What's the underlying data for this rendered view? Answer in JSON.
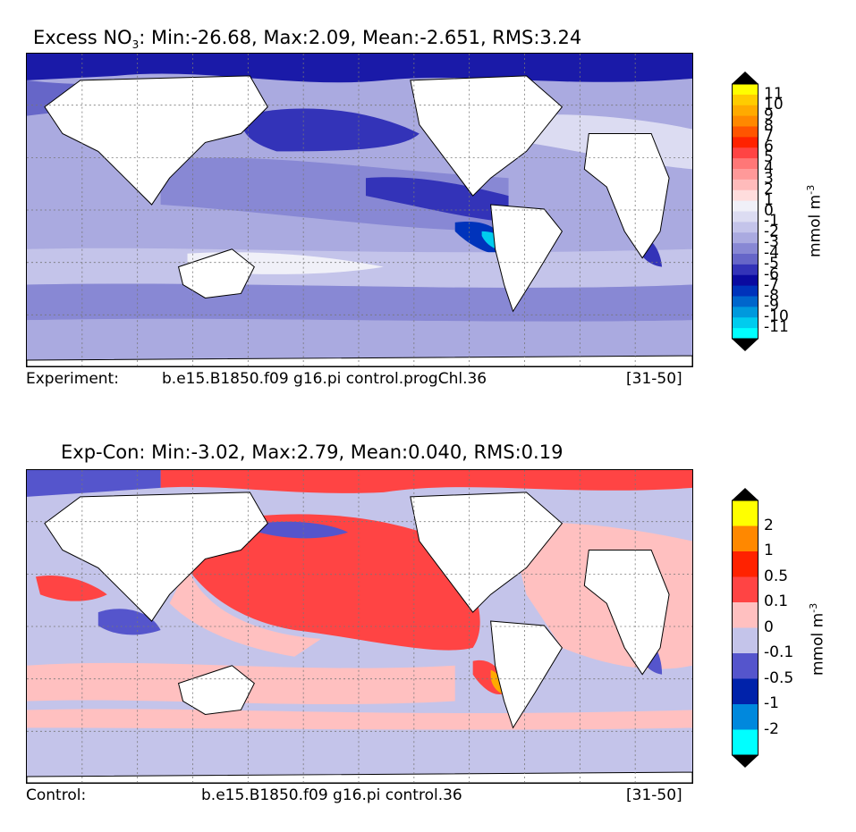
{
  "panel_top": {
    "title_prefix": "Excess NO",
    "title_sub": "3",
    "title_stats": ": Min:-26.68, Max:2.09, Mean:-2.651, RMS:3.24",
    "footer_left": "Experiment:",
    "footer_mid": "b.e15.B1850.f09 g16.pi control.progChl.36",
    "footer_right": "[31-50]",
    "colorbar": {
      "unit": "mmol m",
      "unit_sup": "-3",
      "ticks": [
        "11",
        "10",
        "9",
        "8",
        "7",
        "6",
        "5",
        "4",
        "3",
        "2",
        "1",
        "0",
        "-1",
        "-2",
        "-3",
        "-4",
        "-5",
        "-6",
        "-7",
        "-8",
        "-9",
        "-10",
        "-11"
      ],
      "colors": [
        "#ffff00",
        "#ffcc00",
        "#ffaa00",
        "#ff8800",
        "#ff5500",
        "#ff2200",
        "#ff4444",
        "#ff7777",
        "#ff9999",
        "#ffbbbb",
        "#ffdddd",
        "#f0f0f8",
        "#dcdcf2",
        "#c4c4ea",
        "#aaaae0",
        "#8888d4",
        "#6666c8",
        "#3333b8",
        "#0a0aa0",
        "#0033bb",
        "#0066cc",
        "#0099dd",
        "#00ccee",
        "#00ffff"
      ]
    },
    "regions": {
      "ocean_base": "#aaaae0",
      "deep_blue": "#3333b8",
      "mid_blue": "#8888d4",
      "light": "#dcdcf2",
      "cyan": "#00ccee",
      "land": "#ffffff"
    }
  },
  "panel_bottom": {
    "title": "Exp-Con: Min:-3.02, Max:2.79, Mean:0.040, RMS:0.19",
    "footer_left": "Control:",
    "footer_mid": "b.e15.B1850.f09 g16.pi control.36",
    "footer_right": "[31-50]",
    "colorbar": {
      "unit": "mmol m",
      "unit_sup": "-3",
      "ticks": [
        "2",
        "1",
        "0.5",
        "0.1",
        "0",
        "-0.1",
        "-0.5",
        "-1",
        "-2"
      ],
      "colors": [
        "#ffff00",
        "#ff8800",
        "#ff2200",
        "#ff4444",
        "#ffc0c0",
        "#c4c4ea",
        "#5555cc",
        "#0022aa",
        "#0088dd",
        "#00ffff"
      ]
    },
    "regions": {
      "ocean_base": "#c4c4ea",
      "pink": "#ffc0c0",
      "red": "#ff4444",
      "blue": "#5555cc",
      "land": "#ffffff"
    }
  }
}
